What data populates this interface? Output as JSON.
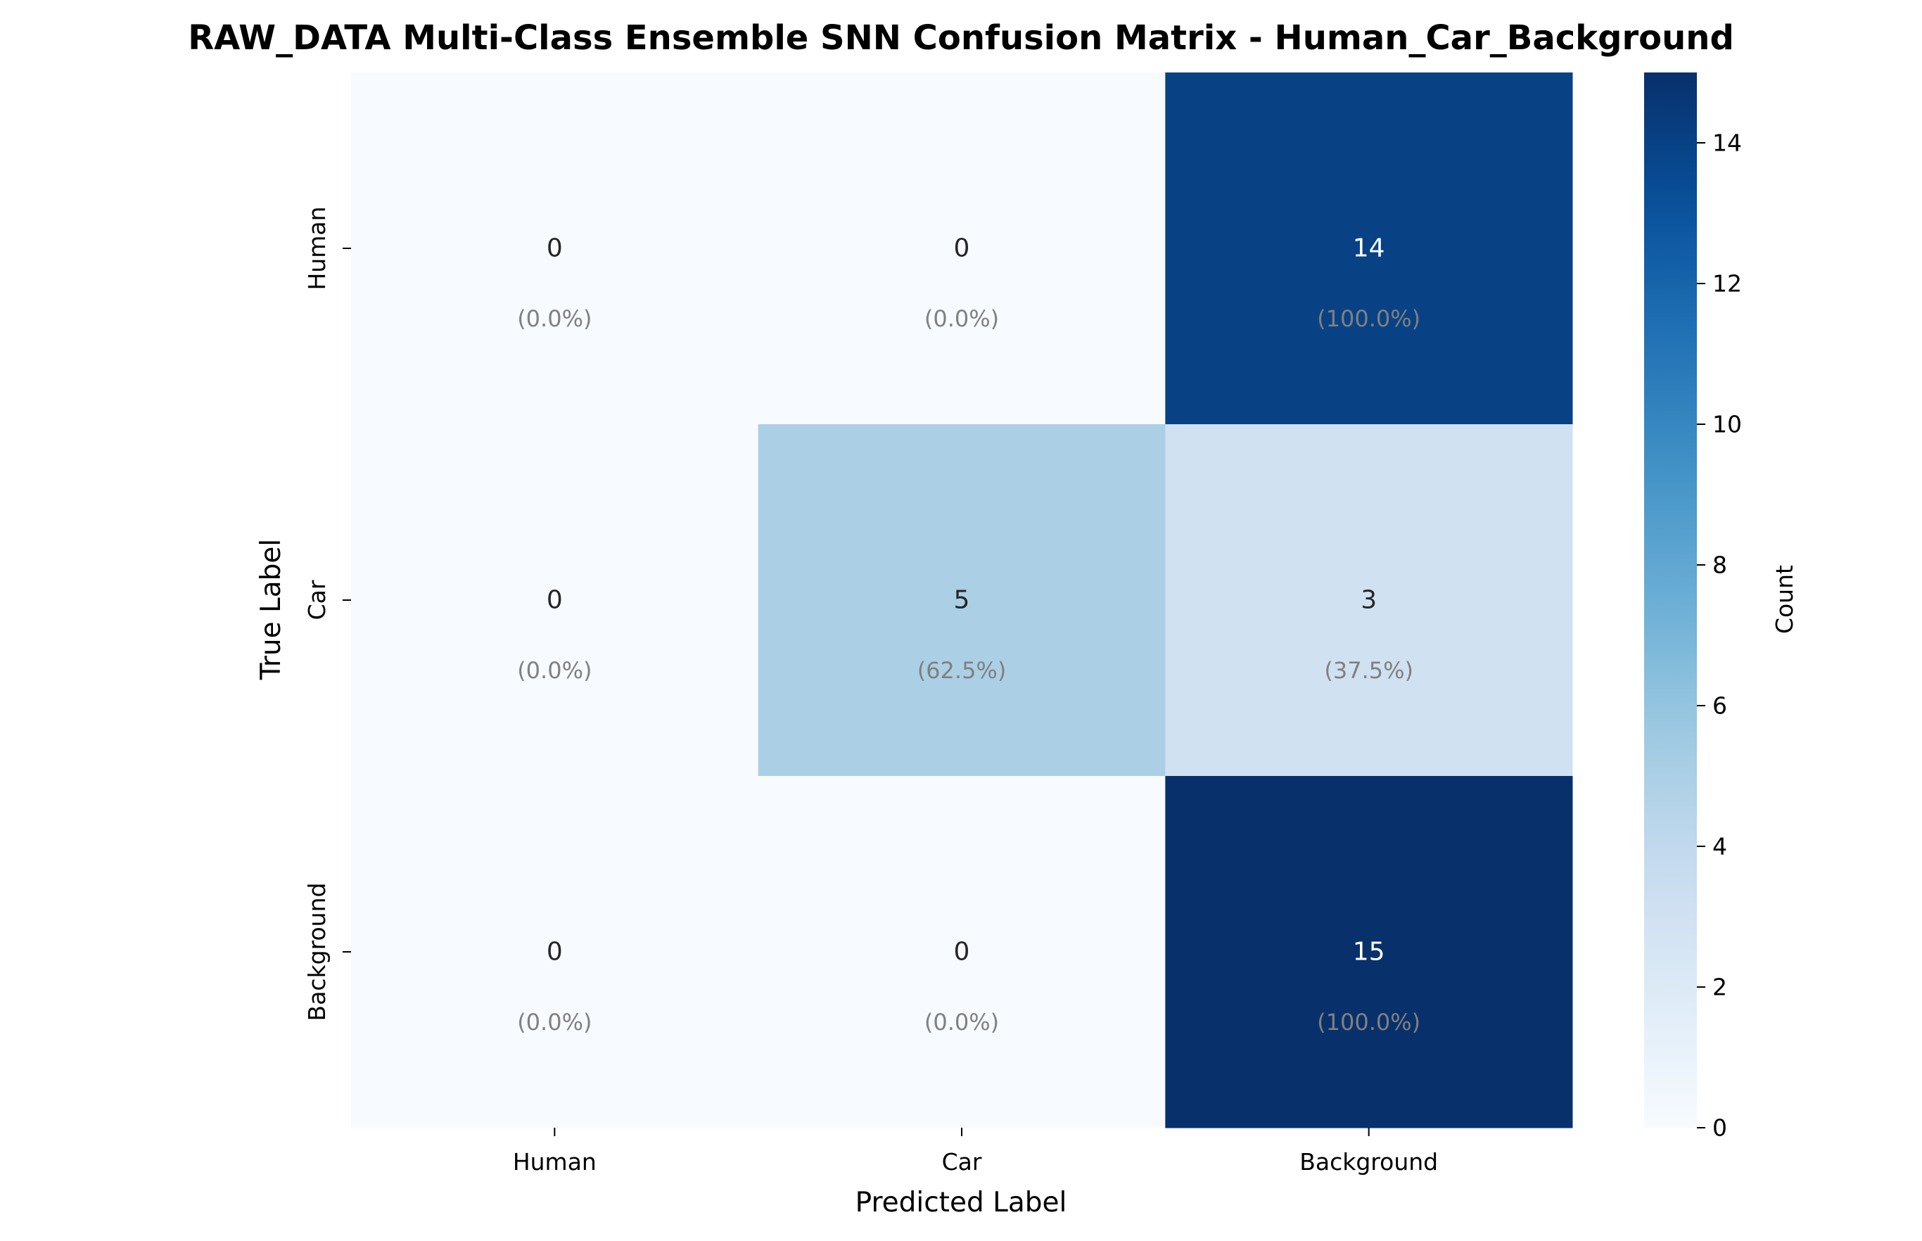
{
  "chart_data": {
    "type": "heatmap",
    "title": "RAW_DATA Multi-Class Ensemble SNN Confusion Matrix - Human_Car_Background",
    "xlabel": "Predicted Label",
    "ylabel": "True Label",
    "x_categories": [
      "Human",
      "Car",
      "Background"
    ],
    "y_categories": [
      "Human",
      "Car",
      "Background"
    ],
    "values": [
      [
        0,
        0,
        14
      ],
      [
        0,
        5,
        3
      ],
      [
        0,
        0,
        15
      ]
    ],
    "percentages": [
      [
        "(0.0%)",
        "(0.0%)",
        "(100.0%)"
      ],
      [
        "(0.0%)",
        "(62.5%)",
        "(37.5%)"
      ],
      [
        "(0.0%)",
        "(0.0%)",
        "(100.0%)"
      ]
    ],
    "colorbar": {
      "label": "Count",
      "range": [
        0,
        15
      ],
      "ticks": [
        0,
        2,
        4,
        6,
        8,
        10,
        12,
        14
      ]
    },
    "colormap": "Blues",
    "grid": false
  }
}
